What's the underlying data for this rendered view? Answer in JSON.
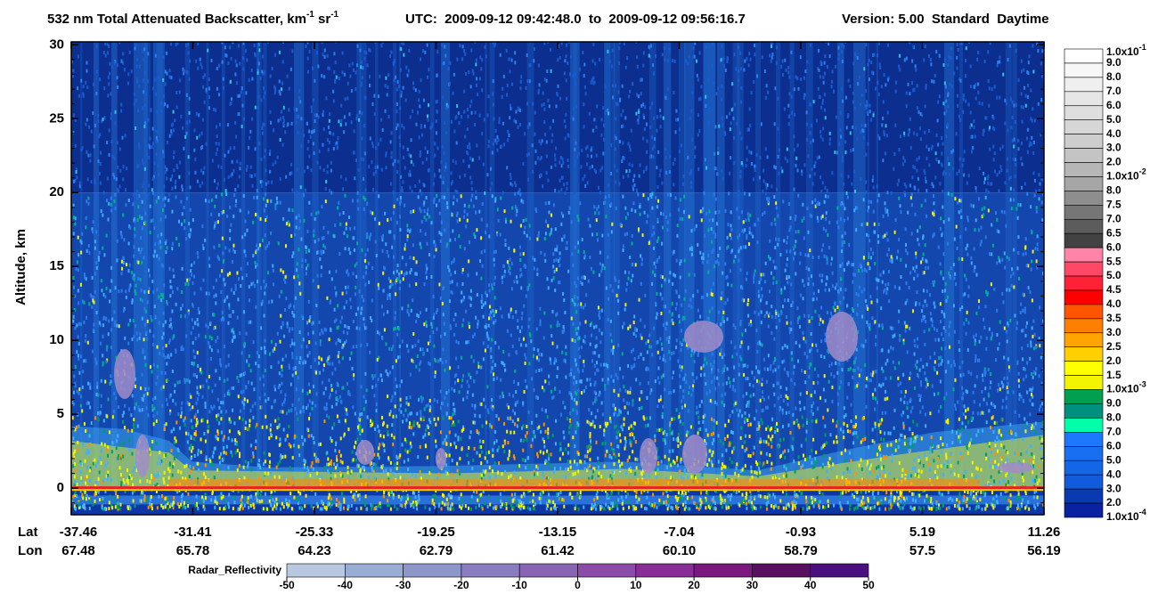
{
  "chart_data": {
    "type": "curtain",
    "title": [
      "532 nm Total Attenuated Backscatter, km",
      "-1",
      " sr",
      "-1"
    ],
    "subtitle": "UTC:  2009-09-12 09:42:48.0  to  2009-09-12 09:56:16.7",
    "version": "Version: 5.00  Standard  Daytime",
    "y_label": "Altitude, km",
    "ylim": [
      -1.8,
      30.2
    ],
    "yticks": [
      0,
      5,
      10,
      15,
      20,
      25,
      30
    ],
    "x_ticks": {
      "row_labels": [
        "Lat",
        "Lon"
      ],
      "lat": [
        -37.46,
        -31.41,
        -25.33,
        -19.25,
        -13.15,
        -7.04,
        -0.93,
        5.19,
        11.26
      ],
      "lon": [
        67.48,
        65.78,
        64.23,
        62.79,
        61.42,
        {
          "value": 60.1,
          "label": "60.10"
        },
        58.79,
        57.5,
        56.19
      ]
    },
    "colorbar": {
      "labels": [
        {
          "text": "1.0x10",
          "exp": "-1"
        },
        "9.0",
        "8.0",
        "7.0",
        "6.0",
        "5.0",
        "4.0",
        "3.0",
        "2.0",
        {
          "text": "1.0x10",
          "exp": "-2"
        },
        "8.0",
        "7.5",
        "7.0",
        "6.5",
        "6.0",
        "5.5",
        "5.0",
        "4.5",
        "4.0",
        "3.5",
        "3.0",
        "2.5",
        "2.0",
        "1.5",
        {
          "text": "1.0x10",
          "exp": "-3"
        },
        "9.0",
        "8.0",
        "7.0",
        "6.0",
        "5.0",
        "4.0",
        "3.0",
        "2.0",
        {
          "text": "1.0x10",
          "exp": "-4"
        }
      ],
      "colors": [
        "#ffffff",
        "#f7f7f7",
        "#efefef",
        "#e6e6e6",
        "#dedede",
        "#d6d6d6",
        "#cdcdcd",
        "#c4c4c4",
        "#b6b6b6",
        "#a6a6a6",
        "#8e8e8e",
        "#767676",
        "#5c5c5c",
        "#424242",
        "#ff84a8",
        "#ff4868",
        "#ff2236",
        "#ff0000",
        "#ff5500",
        "#ff8000",
        "#ffa400",
        "#ffd000",
        "#ffff00",
        "#f4f400",
        "#00a050",
        "#009080",
        "#00ffa8",
        "#1e78ff",
        "#1870f0",
        "#1466e6",
        "#105cdc",
        "#0a3ab0",
        "#0822a0"
      ]
    },
    "radar": {
      "label": "Radar_Reflectivity",
      "ticks": [
        -50,
        -40,
        -30,
        -20,
        -10,
        0,
        10,
        20,
        30,
        40,
        50
      ],
      "colors": [
        "#b8c8e0",
        "#98acd4",
        "#8c96c8",
        "#8a7cc0",
        "#8a64b4",
        "#8a4ca8",
        "#8a2c98",
        "#7a1880",
        "#5a1060",
        "#4a1080"
      ]
    }
  }
}
